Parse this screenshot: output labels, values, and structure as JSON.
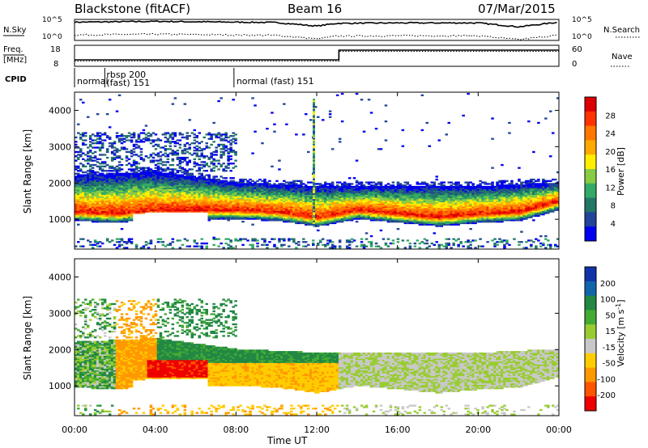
{
  "header": {
    "station": "Blackstone (fitACF)",
    "beam": "Beam 16",
    "date": "07/Mar/2015"
  },
  "noise_panel": {
    "left_label": "N.Sky",
    "right_label": "N.Search",
    "left_ticks": [
      "10^5",
      "10^0"
    ],
    "right_ticks": [
      "10^5",
      "10^0"
    ]
  },
  "freq_panel": {
    "left_label_1": "Freq.",
    "left_label_2": "[MHz]",
    "right_label": "Nave",
    "left_ticks": [
      "18",
      "8"
    ],
    "right_ticks": [
      "60",
      "0"
    ]
  },
  "cpid": {
    "label": "CPID",
    "segments": [
      {
        "start": 0.0,
        "end": 1.5,
        "text": "normal",
        "text2": ""
      },
      {
        "start": 1.5,
        "end": 7.9,
        "text": "rbsp 200",
        "text2": "(fast) 151"
      },
      {
        "start": 7.9,
        "end": 24.0,
        "text": "normal (fast)  151",
        "text2": ""
      }
    ]
  },
  "power_colorbar": {
    "label": "Power [dB]",
    "ticks": [
      "28",
      "24",
      "20",
      "16",
      "12",
      "8",
      "4"
    ],
    "colors": [
      "#dd0000",
      "#ff3300",
      "#ff7700",
      "#ffaa00",
      "#ffee00",
      "#88cc44",
      "#33aa66",
      "#227766",
      "#224499",
      "#0000ee"
    ]
  },
  "velocity_colorbar": {
    "label": "Velocity [m s",
    "label_sup": "-1",
    "label_end": "]",
    "ticks": [
      "200",
      "100",
      "50",
      "15",
      "-15",
      "-50",
      "-100",
      "-200"
    ],
    "colors": [
      "#1133aa",
      "#1166aa",
      "#228844",
      "#44aa33",
      "#99cc33",
      "#c8c8c8",
      "#ffcc00",
      "#ff9900",
      "#ff5500",
      "#ee0000"
    ]
  },
  "chart_data": {
    "type": "heatmap",
    "title": "Blackstone (fitACF)   Beam 16   07/Mar/2015",
    "xlabel": "Time UT",
    "ylabel": "Slant Range [km]",
    "x_ticks": [
      "00:00",
      "04:00",
      "08:00",
      "12:00",
      "16:00",
      "20:00",
      "00:00"
    ],
    "x_range_hours": [
      0,
      24
    ],
    "y_ticks": [
      "1000",
      "2000",
      "3000",
      "4000"
    ],
    "y_range_km": [
      180,
      4500
    ],
    "grid": false,
    "panels": [
      {
        "name": "Power [dB]",
        "scale": [
          0,
          30
        ],
        "backscatter_band": {
          "center_km_at_hour": [
            [
              0,
              1200
            ],
            [
              2,
              1150
            ],
            [
              4,
              1250
            ],
            [
              6,
              1250
            ],
            [
              8,
              1250
            ],
            [
              10,
              1200
            ],
            [
              12,
              1050
            ],
            [
              14,
              1250
            ],
            [
              16,
              1150
            ],
            [
              18,
              1050
            ],
            [
              20,
              1150
            ],
            [
              22,
              1200
            ],
            [
              24,
              1500
            ]
          ],
          "peak_power_db": 30,
          "outer_edge_km": [
            [
              0,
              2200
            ],
            [
              4,
              2300
            ],
            [
              8,
              2000
            ],
            [
              12,
              1900
            ],
            [
              16,
              1900
            ],
            [
              20,
              1900
            ],
            [
              24,
              2000
            ]
          ]
        }
      },
      {
        "name": "Velocity [m s-1]",
        "scale": [
          -200,
          200
        ],
        "dominant_values": [
          {
            "hours": [
              0,
              2
            ],
            "velocity_ms": 40
          },
          {
            "hours": [
              2,
              4
            ],
            "velocity_ms": -60
          },
          {
            "hours": [
              3.5,
              6.5
            ],
            "velocity_ms": -200
          },
          {
            "hours": [
              5,
              10
            ],
            "velocity_ms": 50
          },
          {
            "hours": [
              13,
              24
            ],
            "velocity_ms": 0
          }
        ]
      }
    ],
    "noise_n_sky_log10_at_hour": [
      [
        0,
        4.5
      ],
      [
        4,
        4.7
      ],
      [
        8,
        4.5
      ],
      [
        10,
        4.4
      ],
      [
        12,
        3.5
      ],
      [
        13,
        4.2
      ],
      [
        16,
        4.3
      ],
      [
        20,
        4.3
      ],
      [
        22,
        3.3
      ],
      [
        24,
        4.5
      ]
    ],
    "frequency_mhz_at_hour": [
      [
        0,
        10.5
      ],
      [
        13.1,
        10.5
      ],
      [
        13.1,
        16.5
      ],
      [
        24,
        16.5
      ]
    ],
    "nave_at_hour": [
      [
        0,
        12
      ],
      [
        13.1,
        12
      ],
      [
        13.1,
        45
      ],
      [
        24,
        45
      ]
    ]
  }
}
